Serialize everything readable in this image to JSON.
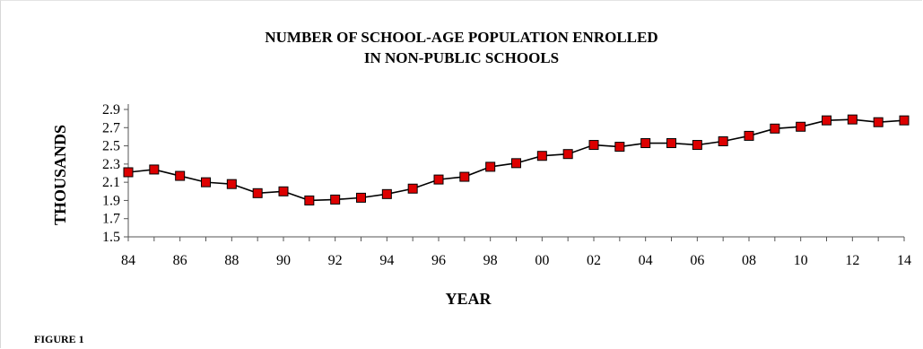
{
  "chart_data": {
    "type": "line",
    "title_lines": [
      "NUMBER OF SCHOOL-AGE POPULATION ENROLLED",
      "IN NON-PUBLIC SCHOOLS"
    ],
    "xlabel": "YEAR",
    "ylabel": "THOUSANDS",
    "x_tick_labels": [
      "84",
      "86",
      "88",
      "90",
      "92",
      "94",
      "96",
      "98",
      "00",
      "02",
      "04",
      "06",
      "08",
      "10",
      "12",
      "14"
    ],
    "y_tick_labels": [
      "1.5",
      "1.7",
      "1.9",
      "2.1",
      "2.3",
      "2.5",
      "2.7",
      "2.9"
    ],
    "ylim": [
      1.5,
      2.9
    ],
    "xlim": [
      1984,
      2014
    ],
    "grid": false,
    "marker": "square",
    "line_color": "#000000",
    "marker_color": "#dd0000",
    "series": [
      {
        "x": [
          1984,
          1985,
          1986,
          1987,
          1988,
          1989,
          1990,
          1991,
          1992,
          1993,
          1994,
          1995,
          1996,
          1997,
          1998,
          1999,
          2000,
          2001,
          2002,
          2003,
          2004,
          2005,
          2006,
          2007,
          2008,
          2009,
          2010,
          2011,
          2012,
          2013,
          2014
        ],
        "values": [
          2.21,
          2.24,
          2.17,
          2.1,
          2.08,
          1.98,
          2.0,
          1.9,
          1.91,
          1.93,
          1.97,
          2.03,
          2.13,
          2.16,
          2.27,
          2.31,
          2.39,
          2.41,
          2.51,
          2.49,
          2.53,
          2.53,
          2.51,
          2.55,
          2.61,
          2.69,
          2.71,
          2.78,
          2.79,
          2.76,
          2.78
        ]
      }
    ]
  },
  "figure_caption": "FIGURE 1"
}
